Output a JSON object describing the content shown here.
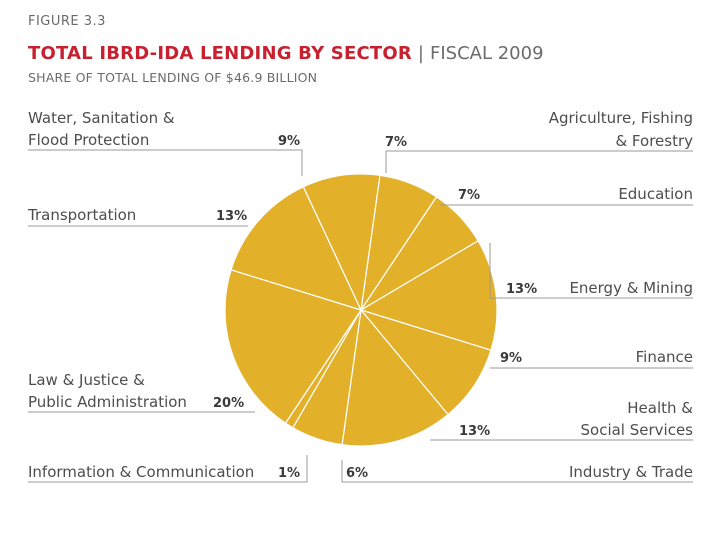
{
  "figure": {
    "label": "FIGURE 3.3",
    "title": "TOTAL IBRD-IDA LENDING BY SECTOR",
    "separator": "|",
    "year": "FISCAL 2009",
    "subtitle": "SHARE OF TOTAL LENDING OF $46.9 BILLION"
  },
  "chart_data": {
    "type": "pie",
    "slice_color": "#e3b02a",
    "title_color": "#c8202f",
    "slices": [
      {
        "name": "Agriculture, Fishing & Forestry",
        "label_lines": [
          "Agriculture, Fishing",
          "& Forestry"
        ],
        "value": 7,
        "pct_label": "7%"
      },
      {
        "name": "Education",
        "label_lines": [
          "Education"
        ],
        "value": 7,
        "pct_label": "7%"
      },
      {
        "name": "Energy & Mining",
        "label_lines": [
          "Energy & Mining"
        ],
        "value": 13,
        "pct_label": "13%"
      },
      {
        "name": "Finance",
        "label_lines": [
          "Finance"
        ],
        "value": 9,
        "pct_label": "9%"
      },
      {
        "name": "Health & Social Services",
        "label_lines": [
          "Health &",
          "Social Services"
        ],
        "value": 13,
        "pct_label": "13%"
      },
      {
        "name": "Industry & Trade",
        "label_lines": [
          "Industry & Trade"
        ],
        "value": 6,
        "pct_label": "6%"
      },
      {
        "name": "Information & Communication",
        "label_lines": [
          "Information & Communication"
        ],
        "value": 1,
        "pct_label": "1%"
      },
      {
        "name": "Law & Justice & Public Administration",
        "label_lines": [
          "Law & Justice &",
          "Public Administration"
        ],
        "value": 20,
        "pct_label": "20%"
      },
      {
        "name": "Transportation",
        "label_lines": [
          "Transportation"
        ],
        "value": 13,
        "pct_label": "13%"
      },
      {
        "name": "Water, Sanitation & Flood Protection",
        "label_lines": [
          "Water, Sanitation &",
          "Flood Protection"
        ],
        "value": 9,
        "pct_label": "9%"
      }
    ]
  }
}
